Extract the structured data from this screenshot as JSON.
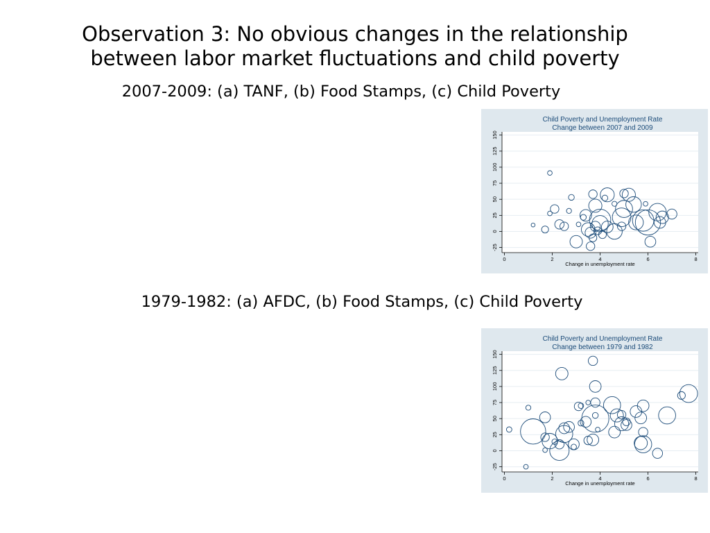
{
  "slide": {
    "title_line1": "Observation 3: No obvious changes in the relationship",
    "title_line2": "between labor market fluctuations and child poverty",
    "subtitle1": "2007-2009: (a) TANF, (b) Food Stamps, (c) Child Poverty",
    "subtitle2": "1979-1982: (a) AFDC, (b) Food Stamps, (c) Child Poverty"
  },
  "colors": {
    "chart_bg": "#dfe8ee",
    "plot_bg": "#ffffff",
    "marker": "#1a4a78",
    "title": "#1a4a78",
    "grid": "#e6edf2"
  },
  "chart_data": [
    {
      "type": "scatter",
      "title": "Child Poverty and Unemployment Rate",
      "subtitle": "Change between 2007 and 2009",
      "xlabel": "Change in unemployment rate",
      "ylabel": "",
      "xlim": [
        -0.1,
        8.1
      ],
      "ylim": [
        -33,
        155
      ],
      "xticks": [
        0,
        2,
        4,
        6,
        8
      ],
      "yticks": [
        -25,
        0,
        25,
        50,
        75,
        100,
        125,
        150
      ],
      "grid": true,
      "marker": "hollow circle, size weighted",
      "points": [
        {
          "x": 1.9,
          "y": 91,
          "s": 1.2
        },
        {
          "x": 1.2,
          "y": 10,
          "s": 1
        },
        {
          "x": 1.7,
          "y": 3,
          "s": 1.8
        },
        {
          "x": 1.9,
          "y": 28,
          "s": 1.2
        },
        {
          "x": 2.1,
          "y": 35,
          "s": 2.2
        },
        {
          "x": 2.3,
          "y": 11,
          "s": 2.4
        },
        {
          "x": 2.5,
          "y": 8,
          "s": 2.2
        },
        {
          "x": 2.7,
          "y": 32,
          "s": 1.3
        },
        {
          "x": 2.8,
          "y": 53,
          "s": 1.5
        },
        {
          "x": 3.0,
          "y": -16,
          "s": 3.2
        },
        {
          "x": 3.1,
          "y": 11,
          "s": 1.2
        },
        {
          "x": 3.3,
          "y": 22,
          "s": 1.5
        },
        {
          "x": 3.4,
          "y": 25,
          "s": 3.0
        },
        {
          "x": 3.5,
          "y": 3,
          "s": 3.5
        },
        {
          "x": 3.6,
          "y": -2,
          "s": 2.8
        },
        {
          "x": 3.6,
          "y": -23,
          "s": 2.2
        },
        {
          "x": 3.7,
          "y": 58,
          "s": 2.2
        },
        {
          "x": 3.7,
          "y": -10,
          "s": 2.0
        },
        {
          "x": 3.8,
          "y": 40,
          "s": 3.4
        },
        {
          "x": 3.8,
          "y": 8,
          "s": 2.6
        },
        {
          "x": 3.9,
          "y": 1,
          "s": 2.0
        },
        {
          "x": 4.0,
          "y": 12,
          "s": 4.2
        },
        {
          "x": 4.0,
          "y": 18,
          "s": 5.5
        },
        {
          "x": 4.1,
          "y": -5,
          "s": 2.0
        },
        {
          "x": 4.2,
          "y": 52,
          "s": 1.5
        },
        {
          "x": 4.3,
          "y": 57,
          "s": 3.6
        },
        {
          "x": 4.3,
          "y": 7,
          "s": 3.0
        },
        {
          "x": 4.6,
          "y": 43,
          "s": 1.3
        },
        {
          "x": 4.6,
          "y": 0,
          "s": 4.0
        },
        {
          "x": 4.9,
          "y": 8,
          "s": 2.2
        },
        {
          "x": 4.9,
          "y": 22,
          "s": 4.8
        },
        {
          "x": 5.0,
          "y": 35,
          "s": 4.4
        },
        {
          "x": 5.0,
          "y": 59,
          "s": 2.2
        },
        {
          "x": 5.2,
          "y": 57,
          "s": 3.4
        },
        {
          "x": 5.4,
          "y": 42,
          "s": 4.0
        },
        {
          "x": 5.5,
          "y": 14,
          "s": 3.8
        },
        {
          "x": 5.8,
          "y": 17,
          "s": 5.5
        },
        {
          "x": 5.9,
          "y": 43,
          "s": 1.2
        },
        {
          "x": 6.0,
          "y": 14,
          "s": 6.5
        },
        {
          "x": 6.1,
          "y": -16,
          "s": 2.8
        },
        {
          "x": 6.4,
          "y": 30,
          "s": 4.5
        },
        {
          "x": 6.5,
          "y": 14,
          "s": 3.0
        },
        {
          "x": 6.6,
          "y": 22,
          "s": 3.2
        },
        {
          "x": 7.0,
          "y": 27,
          "s": 2.6
        }
      ]
    },
    {
      "type": "scatter",
      "title": "Child Poverty and Unemployment Rate",
      "subtitle": "Change between 1979 and 1982",
      "xlabel": "Change in unemployment rate",
      "ylabel": "",
      "xlim": [
        -0.1,
        8.1
      ],
      "ylim": [
        -33,
        155
      ],
      "xticks": [
        0,
        2,
        4,
        6,
        8
      ],
      "yticks": [
        -25,
        0,
        25,
        50,
        75,
        100,
        125,
        150
      ],
      "grid": true,
      "marker": "hollow circle, size weighted",
      "points": [
        {
          "x": 0.2,
          "y": 33,
          "s": 1.4
        },
        {
          "x": 0.9,
          "y": -25,
          "s": 1.2
        },
        {
          "x": 1.0,
          "y": 67,
          "s": 1.3
        },
        {
          "x": 1.2,
          "y": 30,
          "s": 6.5
        },
        {
          "x": 1.7,
          "y": 52,
          "s": 2.8
        },
        {
          "x": 1.7,
          "y": 21,
          "s": 2.2
        },
        {
          "x": 1.7,
          "y": 1,
          "s": 1.2
        },
        {
          "x": 1.9,
          "y": 15,
          "s": 4.0
        },
        {
          "x": 2.1,
          "y": 14,
          "s": 1.4
        },
        {
          "x": 2.3,
          "y": 0,
          "s": 5.0
        },
        {
          "x": 2.3,
          "y": 10,
          "s": 2.4
        },
        {
          "x": 2.4,
          "y": 120,
          "s": 3.2
        },
        {
          "x": 2.5,
          "y": 26,
          "s": 4.4
        },
        {
          "x": 2.5,
          "y": 35,
          "s": 2.8
        },
        {
          "x": 2.7,
          "y": 37,
          "s": 2.8
        },
        {
          "x": 2.9,
          "y": 10,
          "s": 2.8
        },
        {
          "x": 2.9,
          "y": 6,
          "s": 1.4
        },
        {
          "x": 3.1,
          "y": 69,
          "s": 2.2
        },
        {
          "x": 3.2,
          "y": 70,
          "s": 1.4
        },
        {
          "x": 3.2,
          "y": 43,
          "s": 1.5
        },
        {
          "x": 3.4,
          "y": 45,
          "s": 2.8
        },
        {
          "x": 3.5,
          "y": 16,
          "s": 2.2
        },
        {
          "x": 3.5,
          "y": 75,
          "s": 1.2
        },
        {
          "x": 3.7,
          "y": 140,
          "s": 2.4
        },
        {
          "x": 3.7,
          "y": 17,
          "s": 3.0
        },
        {
          "x": 3.8,
          "y": 100,
          "s": 3.0
        },
        {
          "x": 3.8,
          "y": 75,
          "s": 2.4
        },
        {
          "x": 3.8,
          "y": 55,
          "s": 1.5
        },
        {
          "x": 3.8,
          "y": 50,
          "s": 7.0
        },
        {
          "x": 3.9,
          "y": 33,
          "s": 1.2
        },
        {
          "x": 4.5,
          "y": 71,
          "s": 4.4
        },
        {
          "x": 4.6,
          "y": 29,
          "s": 3.0
        },
        {
          "x": 4.7,
          "y": 55,
          "s": 3.4
        },
        {
          "x": 4.9,
          "y": 56,
          "s": 2.2
        },
        {
          "x": 4.9,
          "y": 42,
          "s": 3.6
        },
        {
          "x": 5.1,
          "y": 40,
          "s": 2.8
        },
        {
          "x": 5.1,
          "y": 45,
          "s": 2.0
        },
        {
          "x": 5.5,
          "y": 61,
          "s": 3.0
        },
        {
          "x": 5.7,
          "y": 51,
          "s": 3.0
        },
        {
          "x": 5.7,
          "y": 12,
          "s": 3.4
        },
        {
          "x": 5.8,
          "y": 10,
          "s": 4.4
        },
        {
          "x": 5.8,
          "y": 29,
          "s": 2.4
        },
        {
          "x": 5.8,
          "y": 70,
          "s": 3.0
        },
        {
          "x": 6.4,
          "y": -4,
          "s": 2.6
        },
        {
          "x": 6.8,
          "y": 55,
          "s": 4.4
        },
        {
          "x": 7.4,
          "y": 86,
          "s": 2.0
        },
        {
          "x": 7.7,
          "y": 89,
          "s": 4.6
        }
      ]
    }
  ]
}
